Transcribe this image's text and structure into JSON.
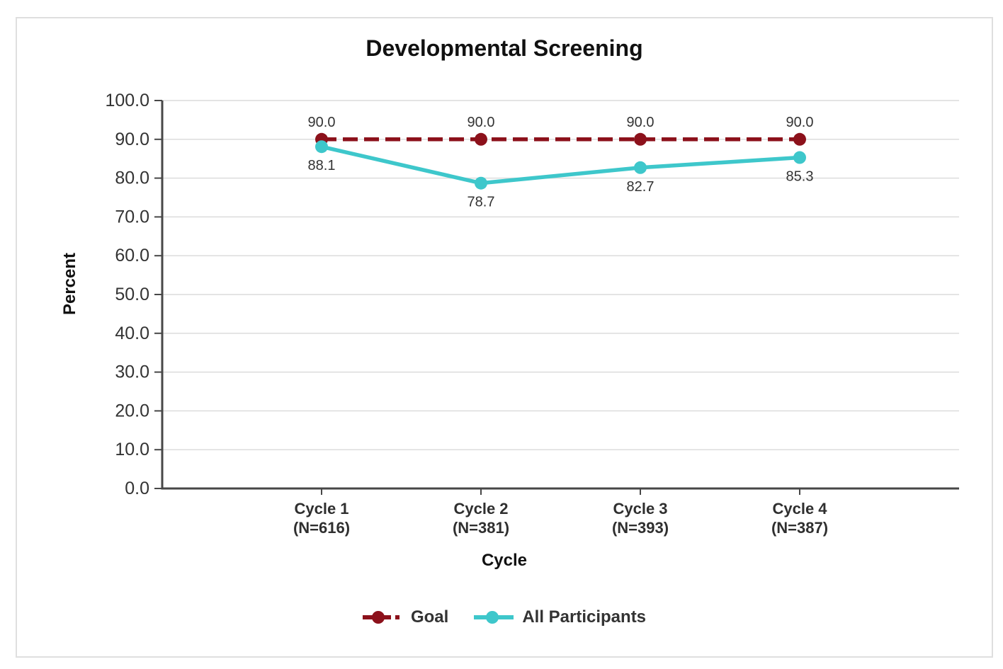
{
  "card": {
    "background": "#ffffff",
    "border_color": "#dfdfdf"
  },
  "chart_data": {
    "type": "line",
    "title": "Developmental Screening",
    "xlabel": "Cycle",
    "ylabel": "Percent",
    "ylim": [
      0,
      100
    ],
    "ytick_labels": [
      "0.0",
      "10.0",
      "20.0",
      "30.0",
      "40.0",
      "50.0",
      "60.0",
      "70.0",
      "80.0",
      "90.0",
      "100.0"
    ],
    "grid": true,
    "legend_position": "bottom",
    "colors": {
      "axis": "#474747",
      "grid": "#dcdcdc"
    },
    "categories": [
      {
        "label": "Cycle 1",
        "sublabel": "(N=616)"
      },
      {
        "label": "Cycle 2",
        "sublabel": "(N=381)"
      },
      {
        "label": "Cycle 3",
        "sublabel": "(N=393)"
      },
      {
        "label": "Cycle 4",
        "sublabel": "(N=387)"
      }
    ],
    "series": [
      {
        "name": "Goal",
        "values": [
          90.0,
          90.0,
          90.0,
          90.0
        ],
        "labels": [
          "90.0",
          "90.0",
          "90.0",
          "90.0"
        ],
        "color": "#8c111b",
        "style": "dashed",
        "label_position": "above"
      },
      {
        "name": "All Participants",
        "values": [
          88.1,
          78.7,
          82.7,
          85.3
        ],
        "labels": [
          "88.1",
          "78.7",
          "82.7",
          "85.3"
        ],
        "color": "#3ec7cb",
        "style": "solid",
        "label_position": "below"
      }
    ]
  }
}
